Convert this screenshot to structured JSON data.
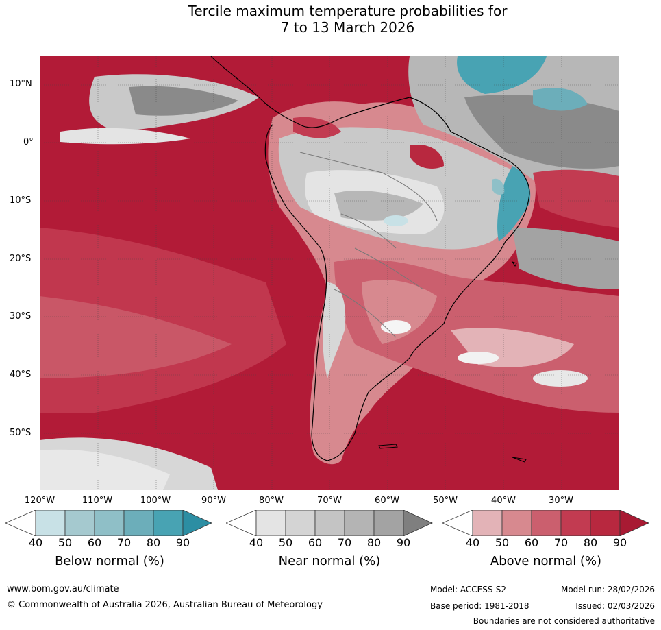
{
  "title": {
    "line1": "Tercile maximum temperature probabilities for",
    "line2": "7 to 13 March 2026"
  },
  "map": {
    "lat_labels": [
      "10°N",
      "0°",
      "10°S",
      "20°S",
      "30°S",
      "40°S",
      "50°S"
    ],
    "lon_labels": [
      "120°W",
      "110°W",
      "100°W",
      "90°W",
      "80°W",
      "70°W",
      "60°W",
      "50°W",
      "40°W",
      "30°W"
    ],
    "dominant_category": "Above normal",
    "colors": {
      "above_90": "#b21b37",
      "above_80": "#c23b51",
      "above_70": "#cb5f6e",
      "above_60": "#d7898f",
      "above_50": "#e3b3b7",
      "near_90": "#7f7f7f",
      "near_80": "#a3a3a3",
      "near_70": "#b7b7b7",
      "near_60": "#c9c9c9",
      "near_50": "#e4e4e4",
      "below_90": "#2c8ea3",
      "below_80": "#48a3b3",
      "below_70": "#6caeba",
      "below_60": "#8fc0c8",
      "below_50": "#c8e1e6"
    }
  },
  "legend": {
    "below": {
      "title": "Below normal (%)",
      "ticks": [
        "40",
        "50",
        "60",
        "70",
        "80",
        "90"
      ],
      "colors": [
        "#ffffff",
        "#c8e1e6",
        "#a5c9cf",
        "#8fbfc7",
        "#6caeba",
        "#48a3b3",
        "#2c8ea3"
      ]
    },
    "near": {
      "title": "Near normal (%)",
      "ticks": [
        "40",
        "50",
        "60",
        "70",
        "80",
        "90"
      ],
      "colors": [
        "#ffffff",
        "#e4e4e4",
        "#d4d4d4",
        "#c4c4c4",
        "#b4b4b4",
        "#a3a3a3",
        "#7f7f7f"
      ]
    },
    "above": {
      "title": "Above normal (%)",
      "ticks": [
        "40",
        "50",
        "60",
        "70",
        "80",
        "90"
      ],
      "colors": [
        "#ffffff",
        "#e3b3b7",
        "#d7898f",
        "#cb5f6e",
        "#c23b51",
        "#b8283f",
        "#a81a33"
      ]
    }
  },
  "footer": {
    "url": "www.bom.gov.au/climate",
    "copyright": "© Commonwealth of Australia 2026, Australian Bureau of Meteorology",
    "model": "Model: ACCESS-S2",
    "base_period": "Base period: 1981-2018",
    "model_run": "Model run: 28/02/2026",
    "issued": "Issued: 02/03/2026",
    "boundaries_note": "Boundaries are not considered authoritative"
  }
}
